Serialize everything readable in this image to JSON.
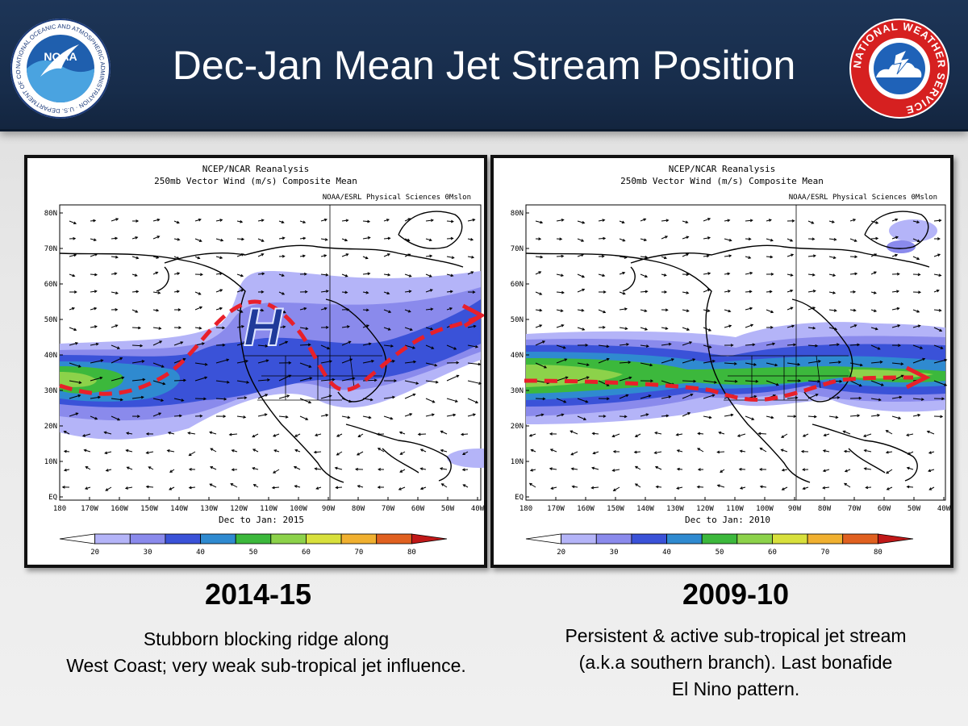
{
  "header": {
    "title": "Dec-Jan Mean Jet Stream Position",
    "noaa_logo_text": "NOAA",
    "noaa_ring_text": "NATIONAL OCEANIC AND ATMOSPHERIC ADMINISTRATION · U.S. DEPARTMENT OF COMMERCE",
    "nws_ring_text": "NATIONAL WEATHER SERVICE"
  },
  "panel_common": {
    "source": "NCEP/NCAR Reanalysis",
    "subtitle": "250mb Vector Wind (m/s) Composite Mean",
    "credit": "NOAA/ESRL Physical Sciences 0Mslon",
    "lat_labels": [
      "80N",
      "70N",
      "60N",
      "50N",
      "40N",
      "30N",
      "20N",
      "10N",
      "EQ"
    ],
    "lon_labels": [
      "180",
      "170W",
      "160W",
      "150W",
      "140W",
      "130W",
      "120W",
      "110W",
      "100W",
      "90W",
      "80W",
      "70W",
      "60W",
      "50W",
      "40W"
    ],
    "colorbar_labels": [
      "20",
      "30",
      "40",
      "50",
      "60",
      "70",
      "80"
    ],
    "colorbar_colors": [
      "#b4b4f8",
      "#8a8aec",
      "#3a52d8",
      "#2f8ad0",
      "#3cb83c",
      "#8cd24a",
      "#d8e03c",
      "#f0b030",
      "#e06020",
      "#c01818"
    ]
  },
  "panels": [
    {
      "period": "Dec to Jan: 2015",
      "year_label": "2014-15",
      "high_label": "H",
      "description": [
        "Stubborn blocking ridge along",
        "West Coast; very weak sub-tropical jet influence."
      ]
    },
    {
      "period": "Dec to Jan: 2010",
      "year_label": "2009-10",
      "description": [
        "Persistent & active sub-tropical jet stream",
        "(a.k.a southern branch).  Last bonafide",
        "El Nino pattern."
      ]
    }
  ],
  "colors": {
    "header_bg": "#1d3557",
    "jet_arrow": "#e8202a"
  }
}
